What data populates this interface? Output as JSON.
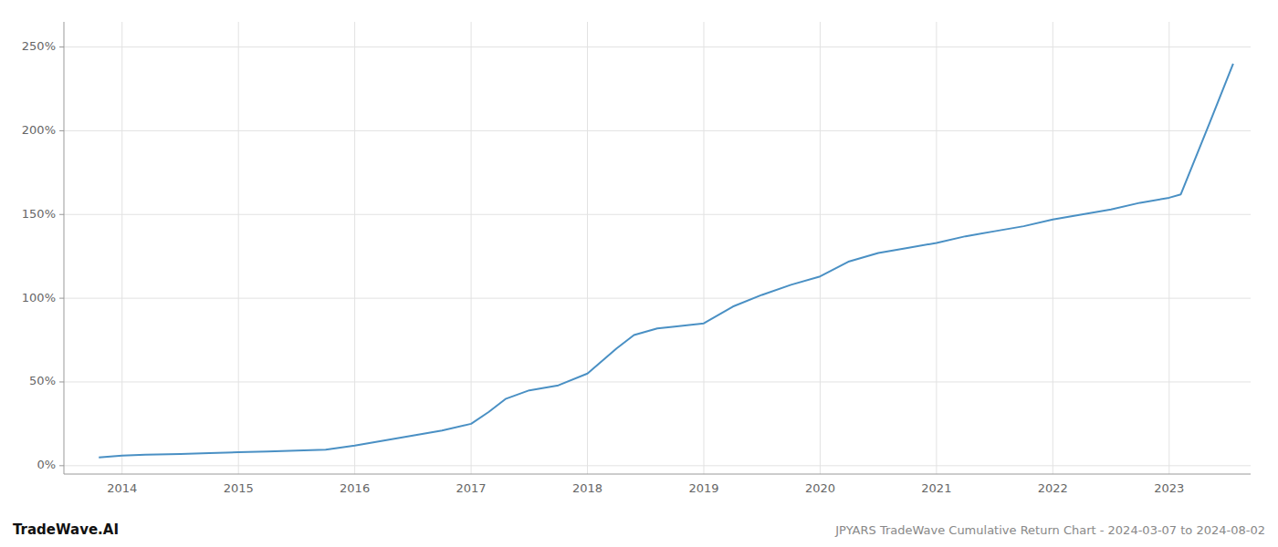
{
  "chart_data": {
    "type": "line",
    "annotations": [
      "TradeWave.AI",
      "JPYARS TradeWave Cumulative Return Chart - 2024-03-07 to 2024-08-02"
    ],
    "color": "#4a90c4",
    "grid": true,
    "xlim": [
      2013.5,
      2023.7
    ],
    "xticks": [
      2014,
      2015,
      2016,
      2017,
      2018,
      2019,
      2020,
      2021,
      2022,
      2023
    ],
    "ylim": [
      -5,
      265
    ],
    "yticks": [
      {
        "value": 0,
        "label": "0%"
      },
      {
        "value": 50,
        "label": "50%"
      },
      {
        "value": 100,
        "label": "100%"
      },
      {
        "value": 150,
        "label": "150%"
      },
      {
        "value": 200,
        "label": "200%"
      },
      {
        "value": 250,
        "label": "250%"
      }
    ],
    "x": [
      2013.8,
      2014.0,
      2014.2,
      2014.5,
      2014.75,
      2015.0,
      2015.25,
      2015.5,
      2015.75,
      2016.0,
      2016.25,
      2016.5,
      2016.75,
      2017.0,
      2017.15,
      2017.3,
      2017.5,
      2017.75,
      2018.0,
      2018.25,
      2018.4,
      2018.6,
      2018.75,
      2019.0,
      2019.25,
      2019.5,
      2019.75,
      2020.0,
      2020.25,
      2020.5,
      2020.75,
      2021.0,
      2021.25,
      2021.5,
      2021.75,
      2022.0,
      2022.25,
      2022.5,
      2022.75,
      2023.0,
      2023.1,
      2023.35,
      2023.55
    ],
    "values": [
      5,
      6,
      6.5,
      7,
      7.5,
      8,
      8.5,
      9,
      9.5,
      12,
      15,
      18,
      21,
      25,
      32,
      40,
      45,
      48,
      55,
      70,
      78,
      82,
      83,
      85,
      95,
      102,
      108,
      113,
      122,
      127,
      130,
      133,
      137,
      140,
      143,
      147,
      150,
      153,
      157,
      160,
      162,
      205,
      240
    ]
  }
}
